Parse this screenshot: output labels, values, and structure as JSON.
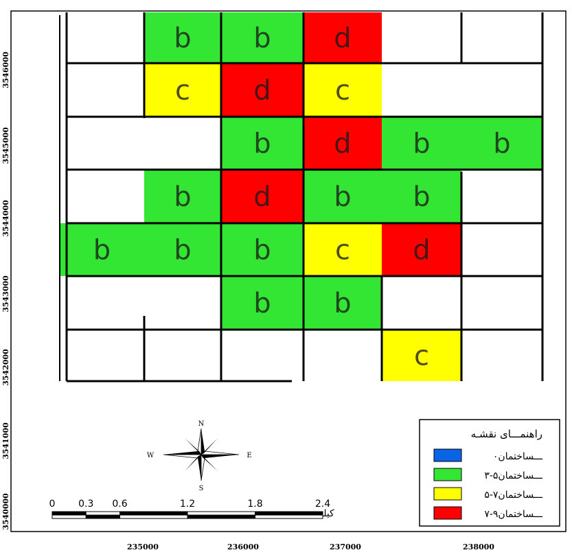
{
  "colors": {
    "a": "#0a64e6",
    "b": "#33e633",
    "c": "#ffff00",
    "d": "#ff0000",
    "gridline": "#000000"
  },
  "cells": [
    {
      "row": 0,
      "col": 1,
      "cls": "b"
    },
    {
      "row": 0,
      "col": 2,
      "cls": "b"
    },
    {
      "row": 0,
      "col": 3,
      "cls": "d"
    },
    {
      "row": 1,
      "col": 1,
      "cls": "c"
    },
    {
      "row": 1,
      "col": 2,
      "cls": "d"
    },
    {
      "row": 1,
      "col": 3,
      "cls": "c"
    },
    {
      "row": 2,
      "col": 2,
      "cls": "b"
    },
    {
      "row": 2,
      "col": 3,
      "cls": "d"
    },
    {
      "row": 2,
      "col": 4,
      "cls": "b"
    },
    {
      "row": 2,
      "col": 5,
      "cls": "b"
    },
    {
      "row": 3,
      "col": 1,
      "cls": "b"
    },
    {
      "row": 3,
      "col": 2,
      "cls": "d"
    },
    {
      "row": 3,
      "col": 3,
      "cls": "b"
    },
    {
      "row": 3,
      "col": 4,
      "cls": "b"
    },
    {
      "row": 4,
      "col": 0,
      "cls": "b"
    },
    {
      "row": 4,
      "col": 1,
      "cls": "b"
    },
    {
      "row": 4,
      "col": 2,
      "cls": "b"
    },
    {
      "row": 4,
      "col": 3,
      "cls": "c"
    },
    {
      "row": 4,
      "col": 4,
      "cls": "d"
    },
    {
      "row": 5,
      "col": 2,
      "cls": "b"
    },
    {
      "row": 5,
      "col": 3,
      "cls": "b"
    },
    {
      "row": 6,
      "col": 4,
      "cls": "c"
    }
  ],
  "axes": {
    "x_ticks": [
      "235000",
      "236000",
      "237000",
      "238000"
    ],
    "y_ticks": [
      "3546000",
      "3545000",
      "3544000",
      "3543000",
      "3542000",
      "3541000",
      "3540000"
    ]
  },
  "legend": {
    "title": "راهنمـــای نقشـه",
    "items": [
      {
        "label": "۰ـــساختمان",
        "cls": "a"
      },
      {
        "label": "۳-۵ـــساختمان",
        "cls": "b"
      },
      {
        "label": "۵-۷ـــساختمان",
        "cls": "c"
      },
      {
        "label": "۷-۹ـــساختمان",
        "cls": "d"
      }
    ]
  },
  "scale_bar": {
    "labels": [
      "0",
      "0.3",
      "0.6",
      "1.2",
      "1.8",
      "2.4"
    ],
    "values_km": [
      0,
      0.3,
      0.6,
      1.2,
      1.8,
      2.4
    ],
    "unit": "کیلومـــــتر"
  },
  "compass": {
    "north": "N",
    "south": "S",
    "east": "E",
    "west": "W"
  }
}
